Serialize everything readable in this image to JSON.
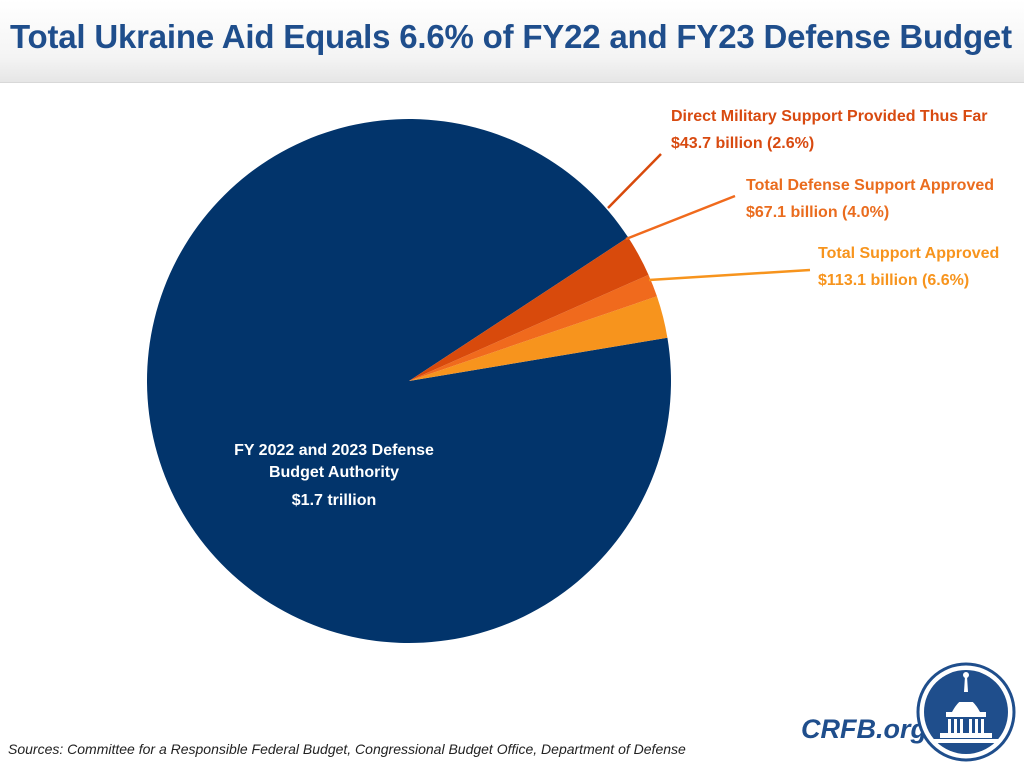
{
  "header": {
    "title": "Total Ukraine Aid Equals 6.6% of FY22 and FY23 Defense Budget"
  },
  "chart_data": {
    "type": "pie",
    "title": "Total Ukraine Aid Equals 6.6% of FY22 and FY23 Defense Budget",
    "total_label": [
      "FY 2022 and 2023 Defense",
      "Budget Authority",
      "$1.7 trillion"
    ],
    "slices": [
      {
        "name": "FY 2022 and 2023 Defense Budget Authority",
        "percent": 93.4,
        "color": "#02346b"
      },
      {
        "name": "Total Support Approved",
        "percent": 2.6,
        "color": "#f7941d",
        "label_line1": "Total Support Approved",
        "label_line2": "$113.1 billion (6.6%)",
        "label_color": "#f7941d"
      },
      {
        "name": "Total Defense Support Approved",
        "percent": 1.4,
        "color": "#f06a1d",
        "label_line1": "Total Defense Support Approved",
        "label_line2": "$67.1 billion (4.0%)",
        "label_color": "#ea6c1e"
      },
      {
        "name": "Direct Military Support Provided Thus Far",
        "percent": 2.6,
        "color": "#d84a0c",
        "label_line1": "Direct Military Support Provided Thus Far",
        "label_line2": "$43.7 billion (2.6%)",
        "label_color": "#d84a10"
      }
    ]
  },
  "footer": {
    "source": "Sources: Committee for a Responsible Federal Budget, Congressional Budget Office, Department of Defense",
    "logo_text": "CRFB.org"
  },
  "colors": {
    "brand": "#1f4e8c",
    "navy": "#02346b"
  }
}
